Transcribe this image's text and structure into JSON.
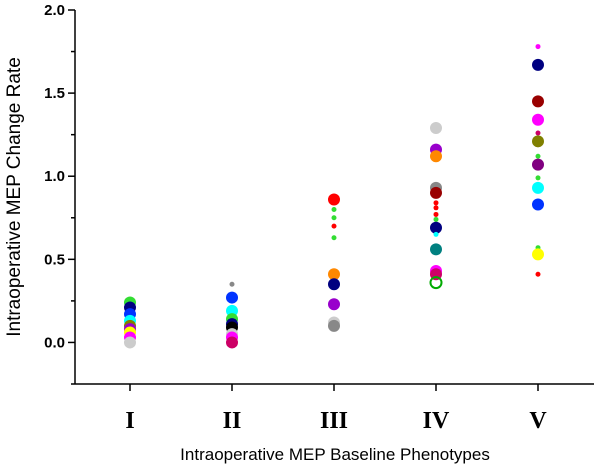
{
  "chart_data": {
    "type": "scatter",
    "title": "",
    "xlabel": "Intraoperative MEP Baseline Phenotypes",
    "ylabel": "Intraoperative MEP Change Rate",
    "categories": [
      "I",
      "II",
      "III",
      "IV",
      "V"
    ],
    "ylim": [
      -0.25,
      2.0
    ],
    "yticks": [
      "0.0",
      "0.5",
      "1.0",
      "1.5",
      "2.0"
    ],
    "grid": false,
    "legend": "none",
    "points": [
      {
        "cat": 0,
        "y": 0.24,
        "color": "#33dd33",
        "size": "large"
      },
      {
        "cat": 0,
        "y": 0.21,
        "color": "#000080",
        "size": "large"
      },
      {
        "cat": 0,
        "y": 0.17,
        "color": "#0033ff",
        "size": "large"
      },
      {
        "cat": 0,
        "y": 0.13,
        "color": "#00ffff",
        "size": "large"
      },
      {
        "cat": 0,
        "y": 0.1,
        "color": "#808000",
        "size": "large"
      },
      {
        "cat": 0,
        "y": 0.08,
        "color": "#9900cc",
        "size": "large"
      },
      {
        "cat": 0,
        "y": 0.06,
        "color": "#ffff00",
        "size": "large"
      },
      {
        "cat": 0,
        "y": 0.03,
        "color": "#ff00ff",
        "size": "large"
      },
      {
        "cat": 0,
        "y": 0.0,
        "color": "#cccccc",
        "size": "large"
      },
      {
        "cat": 1,
        "y": 0.35,
        "color": "#888888",
        "size": "small"
      },
      {
        "cat": 1,
        "y": 0.27,
        "color": "#0033ff",
        "size": "large"
      },
      {
        "cat": 1,
        "y": 0.19,
        "color": "#00ffff",
        "size": "large"
      },
      {
        "cat": 1,
        "y": 0.14,
        "color": "#33dd33",
        "size": "large"
      },
      {
        "cat": 1,
        "y": 0.11,
        "color": "#000080",
        "size": "large"
      },
      {
        "cat": 1,
        "y": 0.09,
        "color": "#000000",
        "size": "large"
      },
      {
        "cat": 1,
        "y": 0.05,
        "color": "#cccccc",
        "size": "large"
      },
      {
        "cat": 1,
        "y": 0.03,
        "color": "#ff00ff",
        "size": "large"
      },
      {
        "cat": 1,
        "y": 0.0,
        "color": "#cc0066",
        "size": "large"
      },
      {
        "cat": 2,
        "y": 0.86,
        "color": "#ff0000",
        "size": "large"
      },
      {
        "cat": 2,
        "y": 0.8,
        "color": "#33dd33",
        "size": "small"
      },
      {
        "cat": 2,
        "y": 0.75,
        "color": "#33dd33",
        "size": "small"
      },
      {
        "cat": 2,
        "y": 0.7,
        "color": "#ff0000",
        "size": "small"
      },
      {
        "cat": 2,
        "y": 0.63,
        "color": "#33dd33",
        "size": "small"
      },
      {
        "cat": 2,
        "y": 0.41,
        "color": "#ff8800",
        "size": "large"
      },
      {
        "cat": 2,
        "y": 0.35,
        "color": "#000080",
        "size": "large"
      },
      {
        "cat": 2,
        "y": 0.23,
        "color": "#9900cc",
        "size": "large"
      },
      {
        "cat": 2,
        "y": 0.12,
        "color": "#cccccc",
        "size": "large"
      },
      {
        "cat": 2,
        "y": 0.1,
        "color": "#888888",
        "size": "large"
      },
      {
        "cat": 3,
        "y": 1.29,
        "color": "#cccccc",
        "size": "large"
      },
      {
        "cat": 3,
        "y": 1.16,
        "color": "#9900cc",
        "size": "large"
      },
      {
        "cat": 3,
        "y": 1.12,
        "color": "#ff8800",
        "size": "large"
      },
      {
        "cat": 3,
        "y": 0.93,
        "color": "#888888",
        "size": "large"
      },
      {
        "cat": 3,
        "y": 0.9,
        "color": "#990000",
        "size": "large"
      },
      {
        "cat": 3,
        "y": 0.84,
        "color": "#ff0000",
        "size": "small"
      },
      {
        "cat": 3,
        "y": 0.81,
        "color": "#ff0000",
        "size": "small"
      },
      {
        "cat": 3,
        "y": 0.77,
        "color": "#ff0000",
        "size": "small"
      },
      {
        "cat": 3,
        "y": 0.74,
        "color": "#33dd33",
        "size": "small"
      },
      {
        "cat": 3,
        "y": 0.69,
        "color": "#000080",
        "size": "large"
      },
      {
        "cat": 3,
        "y": 0.65,
        "color": "#00ffff",
        "size": "small"
      },
      {
        "cat": 3,
        "y": 0.56,
        "color": "#008080",
        "size": "large"
      },
      {
        "cat": 3,
        "y": 0.43,
        "color": "#ff00ff",
        "size": "large"
      },
      {
        "cat": 3,
        "y": 0.41,
        "color": "#cc0066",
        "size": "large"
      },
      {
        "cat": 3,
        "y": 0.36,
        "color": "#00aa00",
        "size": "ring"
      },
      {
        "cat": 4,
        "y": 1.78,
        "color": "#ff00ff",
        "size": "small"
      },
      {
        "cat": 4,
        "y": 1.67,
        "color": "#000080",
        "size": "large"
      },
      {
        "cat": 4,
        "y": 1.45,
        "color": "#990000",
        "size": "large"
      },
      {
        "cat": 4,
        "y": 1.34,
        "color": "#ff00ff",
        "size": "large"
      },
      {
        "cat": 4,
        "y": 1.26,
        "color": "#cc0066",
        "size": "small"
      },
      {
        "cat": 4,
        "y": 1.21,
        "color": "#808000",
        "size": "large"
      },
      {
        "cat": 4,
        "y": 1.12,
        "color": "#33dd33",
        "size": "small"
      },
      {
        "cat": 4,
        "y": 1.07,
        "color": "#800080",
        "size": "large"
      },
      {
        "cat": 4,
        "y": 0.99,
        "color": "#33dd33",
        "size": "small"
      },
      {
        "cat": 4,
        "y": 0.93,
        "color": "#00ffff",
        "size": "large"
      },
      {
        "cat": 4,
        "y": 0.83,
        "color": "#0033ff",
        "size": "large"
      },
      {
        "cat": 4,
        "y": 0.57,
        "color": "#33dd33",
        "size": "small"
      },
      {
        "cat": 4,
        "y": 0.53,
        "color": "#ffff00",
        "size": "large"
      },
      {
        "cat": 4,
        "y": 0.41,
        "color": "#ff0000",
        "size": "small"
      }
    ]
  }
}
